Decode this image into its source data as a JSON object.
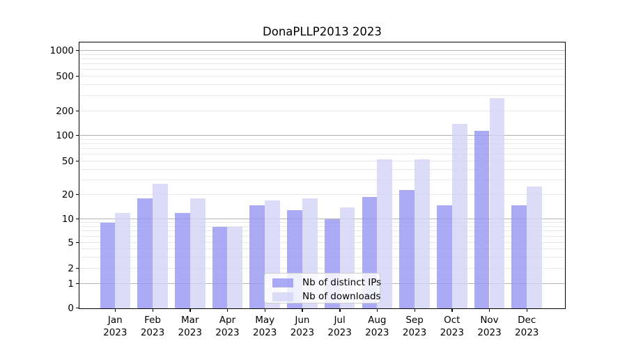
{
  "title": "DonaPLLP2013 2023",
  "chart_data": {
    "type": "bar",
    "title": "DonaPLLP2013 2023",
    "x_months": [
      "Jan",
      "Feb",
      "Mar",
      "Apr",
      "May",
      "Jun",
      "Jul",
      "Aug",
      "Sep",
      "Oct",
      "Nov",
      "Dec"
    ],
    "x_year": "2023",
    "series": [
      {
        "name": "Nb of distinct IPs",
        "color": "rgba(149,149,242,0.8)",
        "values": [
          9,
          18,
          12,
          8,
          15,
          13,
          10,
          19,
          23,
          15,
          115,
          15
        ]
      },
      {
        "name": "Nb of downloads",
        "color": "rgba(211,211,246,0.8)",
        "values": [
          12,
          27,
          18,
          8,
          17,
          18,
          14,
          53,
          53,
          140,
          285,
          25
        ]
      }
    ],
    "y_scale": "symlog",
    "y_tick_labels": [
      0,
      1,
      2,
      5,
      10,
      20,
      50,
      100,
      200,
      500,
      1000
    ],
    "y_major_gridlines": [
      1,
      10,
      100,
      1000
    ],
    "y_minor_gridlines": [
      2,
      3,
      4,
      5,
      6,
      7,
      8,
      9,
      20,
      30,
      40,
      50,
      60,
      70,
      80,
      90,
      200,
      300,
      400,
      500,
      600,
      700,
      800,
      900
    ],
    "ylim": [
      0,
      1300
    ],
    "grid": true,
    "legend_position": "lower center",
    "colors": {
      "major_grid": "#b4b4b4",
      "minor_grid": "#e8e8e8",
      "spine": "#000000"
    }
  }
}
